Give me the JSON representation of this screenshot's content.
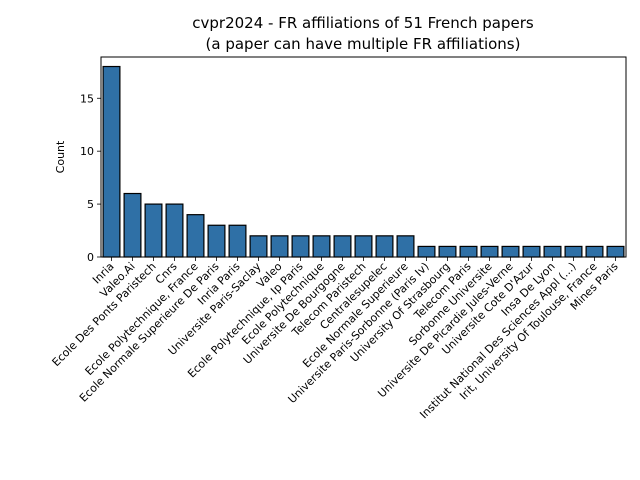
{
  "chart_data": {
    "type": "bar",
    "title": "cvpr2024 - FR affiliations of 51 French papers",
    "subtitle": "(a paper can have multiple FR affiliations)",
    "xlabel": "",
    "ylabel": "Count",
    "ylim": [
      0,
      18.9
    ],
    "yticks": [
      0,
      5,
      10,
      15
    ],
    "grid": false,
    "bar_color": "#2f70a6",
    "categories": [
      "Inria",
      "Valeo.Ai",
      "Ecole Des Ponts Paristech",
      "Cnrs",
      "Ecole Polytechnique, France",
      "Ecole Normale Superieure De Paris",
      "Inria Paris",
      "Universite Paris-Saclay",
      "Valeo",
      "Ecole Polytechnique, Ip Paris",
      "Ecole Polytechnique",
      "Universite De Bourgogne",
      "Telecom Paristech",
      "Centralesupelec",
      "Ecole Normale Superieure",
      "Universite Paris-Sorbonne (Paris Iv)",
      "University Of Strasbourg",
      "Telecom Paris",
      "Sorbonne Universite",
      "Universite De Picardie Jules-Verne",
      "Universite Cote D'Azur",
      "Insa De Lyon",
      "Institut National Des Sciences Appl (...)",
      "Irit, University Of Toulouse, France",
      "Mines Paris"
    ],
    "values": [
      18,
      6,
      5,
      5,
      4,
      3,
      3,
      2,
      2,
      2,
      2,
      2,
      2,
      2,
      2,
      1,
      1,
      1,
      1,
      1,
      1,
      1,
      1,
      1,
      1
    ]
  }
}
